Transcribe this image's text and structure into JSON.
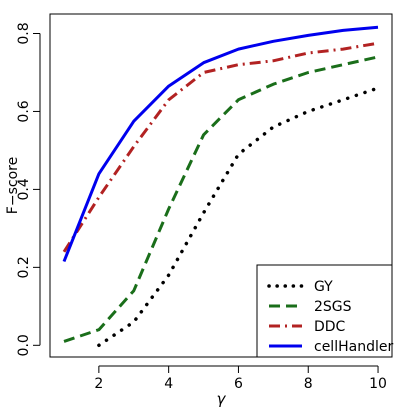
{
  "chart_data": {
    "type": "line",
    "title": "",
    "xlabel": "γ",
    "ylabel": "F−score",
    "xlim": [
      0.6,
      10.4
    ],
    "ylim": [
      -0.03,
      0.85
    ],
    "x_ticks": [
      2,
      4,
      6,
      8,
      10
    ],
    "y_ticks": [
      0.0,
      0.2,
      0.4,
      0.6,
      0.8
    ],
    "y_tick_labels": [
      "0.0",
      "0.2",
      "0.4",
      "0.6",
      "0.8"
    ],
    "grid": false,
    "legend_position": "bottom-right",
    "x": [
      1,
      2,
      3,
      4,
      5,
      6,
      7,
      8,
      9,
      10
    ],
    "series": [
      {
        "name": "GY",
        "color": "#000000",
        "style": "dotted",
        "x": [
          2,
          3,
          4,
          5,
          6,
          7,
          8,
          9,
          10
        ],
        "values": [
          0.0,
          0.06,
          0.18,
          0.34,
          0.49,
          0.56,
          0.6,
          0.63,
          0.66
        ]
      },
      {
        "name": "2SGS",
        "color": "#1a6e1a",
        "style": "dashed",
        "x": [
          1,
          2,
          3,
          4,
          5,
          6,
          7,
          8,
          9,
          10
        ],
        "values": [
          0.01,
          0.04,
          0.14,
          0.35,
          0.54,
          0.63,
          0.67,
          0.7,
          0.72,
          0.74
        ]
      },
      {
        "name": "DDC",
        "color": "#b22222",
        "style": "dashdot",
        "x": [
          1,
          2,
          3,
          4,
          5,
          6,
          7,
          8,
          9,
          10
        ],
        "values": [
          0.24,
          0.38,
          0.51,
          0.63,
          0.7,
          0.72,
          0.73,
          0.75,
          0.76,
          0.775
        ]
      },
      {
        "name": "cellHandler",
        "color": "#0000ee",
        "style": "solid",
        "x": [
          1,
          2,
          3,
          4,
          5,
          6,
          7,
          8,
          9,
          10
        ],
        "values": [
          0.215,
          0.44,
          0.575,
          0.665,
          0.725,
          0.76,
          0.78,
          0.795,
          0.808,
          0.816
        ]
      }
    ]
  }
}
